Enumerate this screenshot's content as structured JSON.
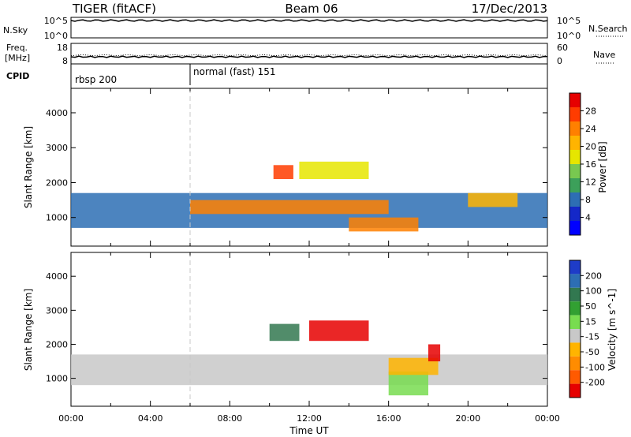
{
  "header": {
    "radar": "TIGER (fitACF)",
    "beam": "Beam 06",
    "date": "17/Dec/2013"
  },
  "nsky": {
    "left_label": "N.Sky",
    "left_ticks": [
      "10^5",
      "10^0"
    ],
    "right_ticks": [
      "10^5",
      "10^0"
    ],
    "right_label": "N.Search"
  },
  "freq": {
    "left_label_1": "Freq.",
    "left_label_2": "[MHz]",
    "left_ticks": [
      "18",
      "8"
    ],
    "right_ticks": [
      "60",
      "0"
    ],
    "right_label": "Nave"
  },
  "cpid": {
    "label": "CPID",
    "segments": [
      {
        "start_hour": 0,
        "label": "rbsp 200"
      },
      {
        "start_hour": 6,
        "label": "normal (fast) 151"
      }
    ]
  },
  "panels": {
    "power": {
      "ylabel": "Slant Range [km]",
      "yticks": [
        "4000",
        "3000",
        "2000",
        "1000"
      ],
      "colorbar_label": "Power [dB]",
      "colorbar_ticks": [
        "28",
        "24",
        "20",
        "16",
        "12",
        "8",
        "4"
      ],
      "colorbar_colors": [
        "#e60000",
        "#ff3c00",
        "#ff8000",
        "#ffb400",
        "#e6e600",
        "#78c850",
        "#3ca05a",
        "#2d6eb4",
        "#1428c8",
        "#0000ff"
      ]
    },
    "velocity": {
      "ylabel": "Slant Range [km]",
      "yticks": [
        "4000",
        "3000",
        "2000",
        "1000"
      ],
      "colorbar_label": "Velocity [m s^-1]",
      "colorbar_ticks": [
        "200",
        "100",
        "50",
        "15",
        "-15",
        "-50",
        "-100",
        "-200"
      ],
      "colorbar_colors": [
        "#1e3cc8",
        "#2d6eb4",
        "#327850",
        "#32a032",
        "#78dc50",
        "#c8c8c8",
        "#ffb400",
        "#ff8c00",
        "#ff5a00",
        "#e60000"
      ]
    }
  },
  "xaxis": {
    "label": "Time UT",
    "ticks": [
      "00:00",
      "04:00",
      "08:00",
      "12:00",
      "16:00",
      "20:00",
      "00:00"
    ]
  },
  "chart_data": {
    "type": "heatmap",
    "title": "TIGER (fitACF) Beam 06 17/Dec/2013",
    "x_label": "Time UT",
    "x_range_hours": [
      0,
      24
    ],
    "y_label": "Slant Range [km]",
    "y_range_km": [
      180,
      4700
    ],
    "power_colorbar_db": [
      0,
      30
    ],
    "velocity_colorbar_ms": [
      -250,
      250
    ],
    "power_echo_regions": [
      {
        "t0": 0.0,
        "t1": 24.0,
        "r0": 700,
        "r1": 1700,
        "power_db": 8
      },
      {
        "t0": 6.0,
        "t1": 16.0,
        "r0": 1100,
        "r1": 1500,
        "power_db": 24
      },
      {
        "t0": 10.2,
        "t1": 11.2,
        "r0": 2100,
        "r1": 2500,
        "power_db": 26
      },
      {
        "t0": 11.5,
        "t1": 15.0,
        "r0": 2100,
        "r1": 2600,
        "power_db": 18
      },
      {
        "t0": 14.0,
        "t1": 17.5,
        "r0": 600,
        "r1": 1000,
        "power_db": 24
      },
      {
        "t0": 20.0,
        "t1": 22.5,
        "r0": 1300,
        "r1": 1700,
        "power_db": 20
      }
    ],
    "velocity_echo_regions": [
      {
        "t0": 0.0,
        "t1": 24.0,
        "r0": 800,
        "r1": 1700,
        "velocity_ms": 0
      },
      {
        "t0": 10.0,
        "t1": 11.5,
        "r0": 2100,
        "r1": 2600,
        "velocity_ms": 150
      },
      {
        "t0": 12.0,
        "t1": 15.0,
        "r0": 2100,
        "r1": 2700,
        "velocity_ms": -200
      },
      {
        "t0": 16.0,
        "t1": 18.0,
        "r0": 500,
        "r1": 1200,
        "velocity_ms": 30
      },
      {
        "t0": 16.0,
        "t1": 18.5,
        "r0": 1100,
        "r1": 1600,
        "velocity_ms": -70
      },
      {
        "t0": 18.0,
        "t1": 18.6,
        "r0": 1500,
        "r1": 2000,
        "velocity_ms": -220
      }
    ],
    "nsky_level": "10^5",
    "freq_mhz": 10.5
  }
}
